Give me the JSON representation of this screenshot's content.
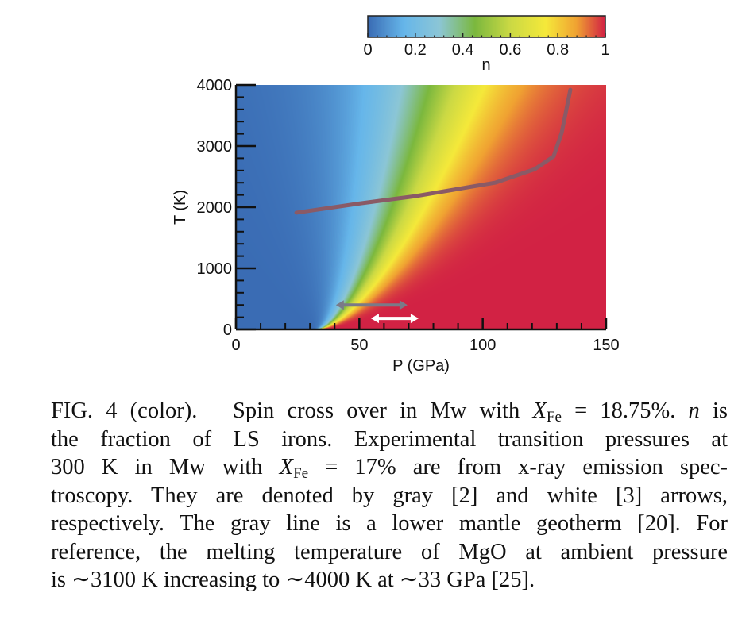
{
  "chart_data": {
    "type": "heatmap",
    "xlabel": "P (GPa)",
    "ylabel": "T (K)",
    "xlim": [
      0,
      150
    ],
    "ylim": [
      0,
      4000
    ],
    "xticks": [
      "0",
      "50",
      "100",
      "150"
    ],
    "yticks": [
      "0",
      "1000",
      "2000",
      "3000",
      "4000"
    ],
    "x_minor_step": 10,
    "y_minor_step": 200,
    "colorbar": {
      "label": "n",
      "range": [
        0,
        1
      ],
      "ticks": [
        "0",
        "0.2",
        "0.4",
        "0.6",
        "0.8",
        "1"
      ],
      "colors": [
        "#3a6cb4",
        "#66b6ea",
        "#8cc6d6",
        "#7bb83e",
        "#cbd944",
        "#f5e93a",
        "#f0a232",
        "#d22244"
      ]
    },
    "field": {
      "description_value": "n rises from 0 to 1 across a crossover starting at ~33 GPa at 0 K and broadening with T",
      "onset_pressure_at_0K": 33,
      "midpoint_pressure_at_4000K": 82
    },
    "geotherm": {
      "color": "#8a5a66",
      "points": [
        [
          24.5,
          1910
        ],
        [
          50,
          2060
        ],
        [
          72.7,
          2180
        ],
        [
          105,
          2400
        ],
        [
          121,
          2620
        ],
        [
          128.7,
          2830
        ],
        [
          132,
          3220
        ],
        [
          135.5,
          3920
        ]
      ]
    },
    "arrows": [
      {
        "color": "#7a7a88",
        "P": [
          40.5,
          69.5
        ],
        "T": 400
      },
      {
        "color": "#ffffff",
        "P": [
          54.7,
          74
        ],
        "T": 180
      }
    ]
  },
  "caption": {
    "lines": [
      [
        {
          "t": "FIG. 4 (color).  Spin cross over in Mw with "
        },
        {
          "t": "X",
          "i": true
        },
        {
          "t": "Fe",
          "sub": true
        },
        {
          "t": " = 18.75%. "
        },
        {
          "t": "n",
          "i": true
        },
        {
          "t": " is"
        }
      ],
      [
        {
          "t": "the fraction of LS irons. Experimental transition pressures at"
        }
      ],
      [
        {
          "t": "300 K in Mw with "
        },
        {
          "t": "X",
          "i": true
        },
        {
          "t": "Fe",
          "sub": true
        },
        {
          "t": " = 17% are from x-ray emission spec-"
        }
      ],
      [
        {
          "t": "troscopy. They are denoted by gray [2] and white [3] arrows,"
        }
      ],
      [
        {
          "t": "respectively. The gray line is a lower mantle geotherm [20]. For"
        }
      ],
      [
        {
          "t": "reference, the melting temperature of MgO at ambient pressure"
        }
      ],
      [
        {
          "t": "is ∼3100 K increasing to ∼4000 K at ∼33 GPa [25]."
        }
      ]
    ]
  }
}
